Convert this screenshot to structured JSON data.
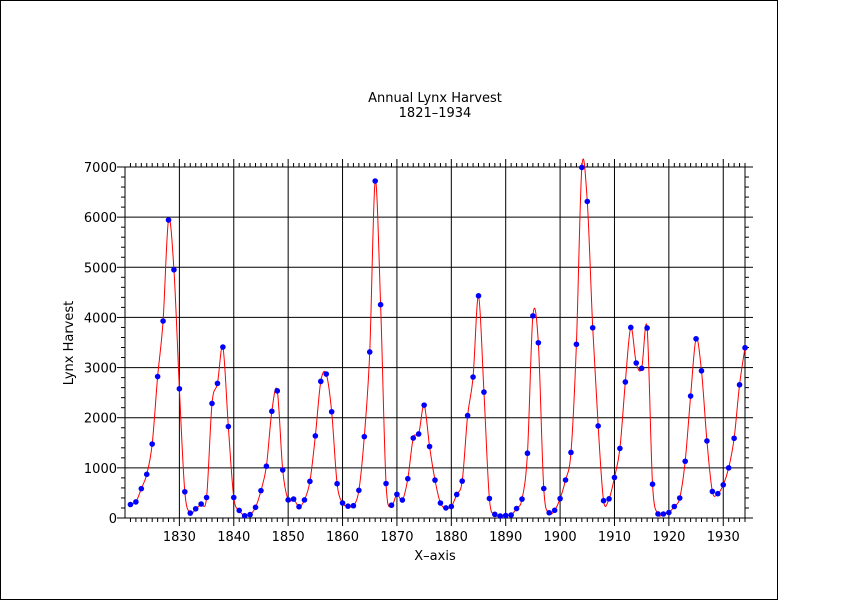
{
  "chart_data": {
    "type": "line",
    "title": "Annual Lynx Harvest",
    "subtitle": "1821–1934",
    "xlabel": "X–axis",
    "ylabel": "Lynx Harvest",
    "xlim": [
      1820,
      1934
    ],
    "ylim": [
      0,
      7000
    ],
    "x_ticks": [
      1830,
      1840,
      1850,
      1860,
      1870,
      1880,
      1890,
      1900,
      1910,
      1920,
      1930
    ],
    "y_ticks": [
      0,
      1000,
      2000,
      3000,
      4000,
      5000,
      6000,
      7000
    ],
    "grid": true,
    "legend": "none",
    "colors": {
      "line": "#ff0000",
      "marker": "#0000ff",
      "grid": "#000000"
    },
    "series": [
      {
        "x": [
          1821,
          1822,
          1823,
          1824,
          1825,
          1826,
          1827,
          1828,
          1829,
          1830,
          1831,
          1832,
          1833,
          1834,
          1835,
          1836,
          1837,
          1838,
          1839,
          1840,
          1841,
          1842,
          1843,
          1844,
          1845,
          1846,
          1847,
          1848,
          1849,
          1850,
          1851,
          1852,
          1853,
          1854,
          1855,
          1856,
          1857,
          1858,
          1859,
          1860,
          1861,
          1862,
          1863,
          1864,
          1865,
          1866,
          1867,
          1868,
          1869,
          1870,
          1871,
          1872,
          1873,
          1874,
          1875,
          1876,
          1877,
          1878,
          1879,
          1880,
          1881,
          1882,
          1883,
          1884,
          1885,
          1886,
          1887,
          1888,
          1889,
          1890,
          1891,
          1892,
          1893,
          1894,
          1895,
          1896,
          1897,
          1898,
          1899,
          1900,
          1901,
          1902,
          1903,
          1904,
          1905,
          1906,
          1907,
          1908,
          1909,
          1910,
          1911,
          1912,
          1913,
          1914,
          1915,
          1916,
          1917,
          1918,
          1919,
          1920,
          1921,
          1922,
          1923,
          1924,
          1925,
          1926,
          1927,
          1928,
          1929,
          1930,
          1931,
          1932,
          1933,
          1934
        ],
        "values": [
          269,
          321,
          585,
          871,
          1475,
          2821,
          3928,
          5943,
          4950,
          2577,
          523,
          98,
          184,
          279,
          409,
          2285,
          2685,
          3409,
          1824,
          409,
          151,
          45,
          68,
          213,
          546,
          1033,
          2129,
          2536,
          957,
          361,
          377,
          225,
          360,
          731,
          1638,
          2725,
          2871,
          2119,
          684,
          299,
          236,
          245,
          552,
          1623,
          3311,
          6721,
          4254,
          687,
          255,
          473,
          358,
          784,
          1594,
          1676,
          2251,
          1426,
          756,
          299,
          201,
          229,
          469,
          736,
          2042,
          2811,
          4431,
          2511,
          389,
          73,
          39,
          49,
          59,
          188,
          377,
          1292,
          4031,
          3495,
          587,
          105,
          153,
          387,
          758,
          1307,
          3465,
          6991,
          6313,
          3794,
          1836,
          345,
          382,
          808,
          1388,
          2713,
          3800,
          3091,
          2985,
          3790,
          674,
          81,
          80,
          108,
          229,
          399,
          1132,
          2432,
          3574,
          2935,
          1537,
          529,
          485,
          662,
          1000,
          1590,
          2657,
          3396
        ]
      }
    ]
  }
}
